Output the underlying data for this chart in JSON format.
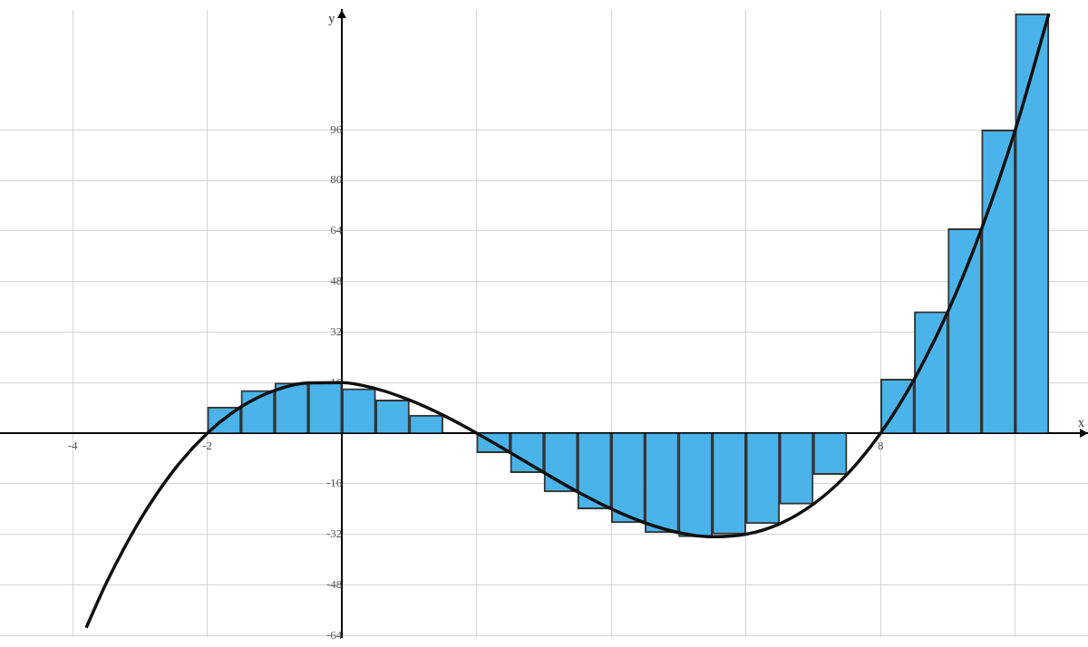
{
  "chart_data": {
    "type": "bar",
    "xlabel": "x",
    "ylabel": "y",
    "xlim": [
      -5.08,
      11.08
    ],
    "ylim": [
      -64.6,
      134
    ],
    "xticks": [
      -4,
      -2,
      {
        "value": 0,
        "label": null
      },
      {
        "value": 2,
        "label": null
      },
      {
        "value": 4,
        "label": null
      },
      {
        "value": 6,
        "label": null
      },
      8,
      {
        "value": 10,
        "label": null
      }
    ],
    "yticks": [
      -64,
      -48,
      -32,
      -16,
      {
        "value": 0,
        "label": null
      },
      16,
      32,
      48,
      64,
      80,
      96
    ],
    "grid": true,
    "legend": false,
    "series": [
      {
        "color": "#4ab3ea",
        "x": [
          -1.75,
          -1.25,
          -0.75,
          -0.25,
          0.25,
          0.75,
          1.25,
          1.75,
          2.25,
          2.75,
          3.25,
          3.75,
          4.25,
          4.75,
          5.25,
          5.75,
          6.25,
          6.75,
          7.25,
          7.75,
          8.25,
          8.75,
          9.25,
          9.75,
          10.25
        ],
        "values": [
          8.3,
          13.5,
          15.9,
          16,
          14.1,
          10.5,
          5.7,
          null,
          -6.2,
          -12.5,
          -18.6,
          -24,
          -28.4,
          -31.5,
          -32.8,
          -32,
          -28.7,
          -22.5,
          -13.1,
          null,
          17.1,
          38.5,
          64.7,
          96,
          132.8
        ]
      },
      {
        "type": "line",
        "color": "#111111",
        "marker": "none",
        "x": [
          -3.8,
          -3.5,
          -3,
          -2.5,
          -2,
          -1.5,
          -1,
          -0.5,
          0,
          0.5,
          1,
          1.5,
          2,
          2.5,
          3,
          3.5,
          4,
          4.5,
          5,
          5.5,
          6,
          6.5,
          7,
          7.5,
          8,
          8.5,
          9,
          9.5,
          10,
          10.5
        ],
        "values": [
          -61.6,
          -47.4,
          -27.5,
          -11.8,
          0,
          8.3,
          13.5,
          15.9,
          16,
          14.1,
          10.5,
          5.7,
          0,
          -6.2,
          -12.5,
          -18.6,
          -24,
          -28.4,
          -31.5,
          -32.8,
          -32,
          -28.7,
          -22.5,
          -13.1,
          0,
          17.1,
          38.5,
          64.7,
          96,
          132.8
        ]
      }
    ]
  }
}
